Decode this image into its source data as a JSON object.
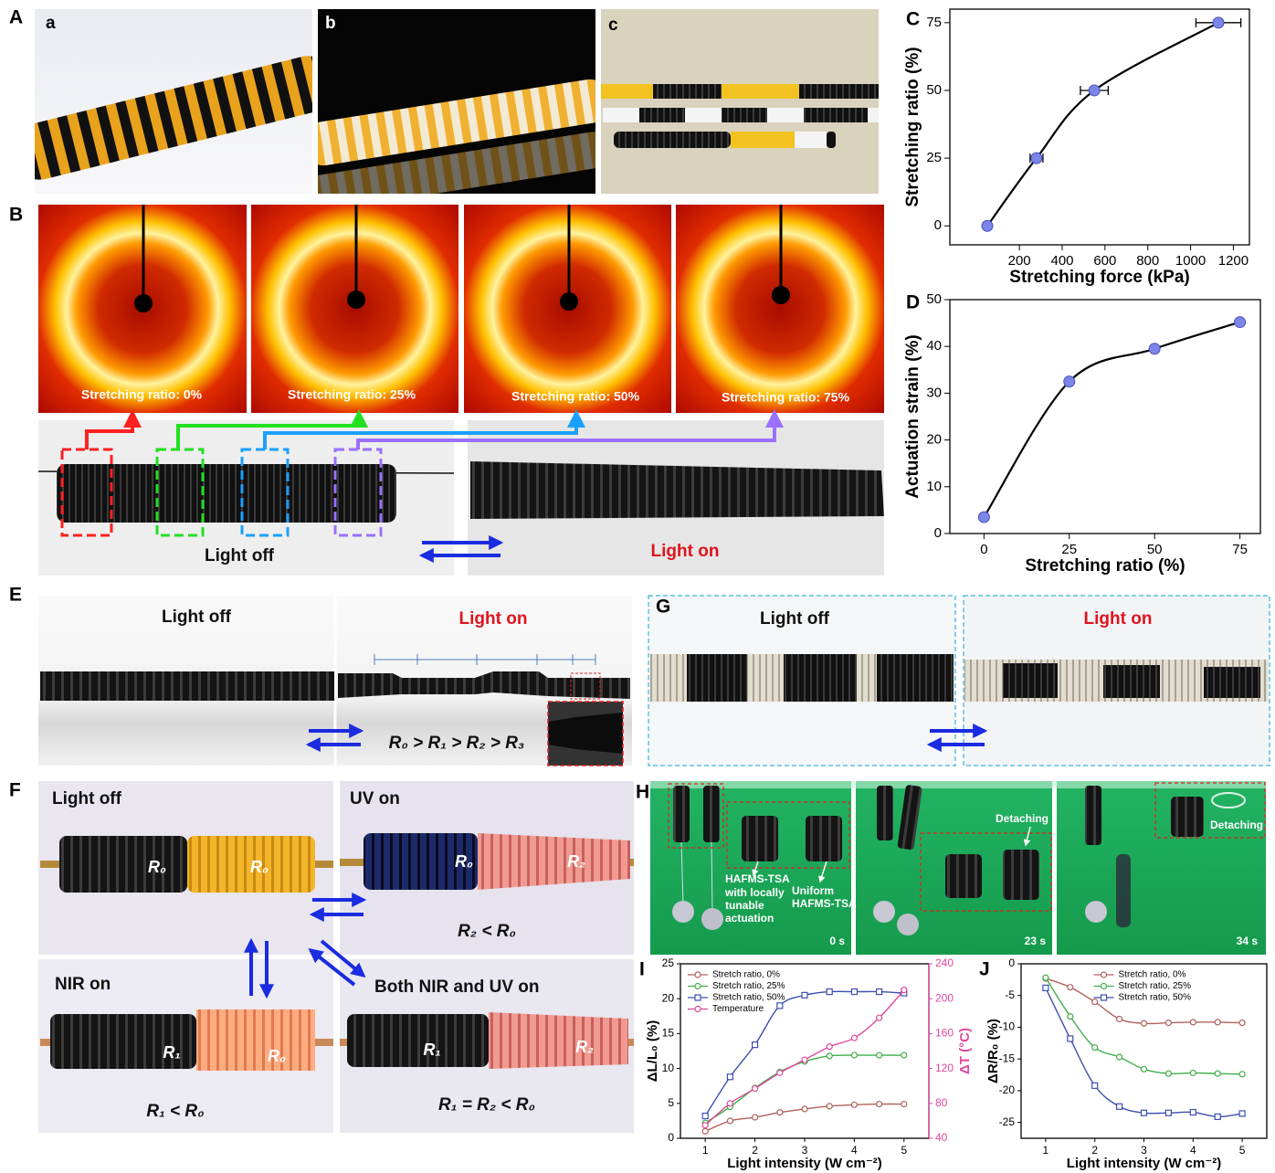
{
  "labels": [
    "A",
    "a",
    "b",
    "c",
    "B",
    "C",
    "D",
    "E",
    "F",
    "G",
    "H",
    "I",
    "J"
  ],
  "panel_B": {
    "captions": [
      "Stretching ratio: 0%",
      "Stretching ratio: 25%",
      "Stretching ratio: 50%",
      "Stretching ratio: 75%"
    ],
    "light_off": "Light off",
    "light_on": "Light on"
  },
  "panel_E": {
    "light_off": "Light off",
    "light_on": "Light on",
    "relation": "R₀ > R₁ > R₂ > R₃"
  },
  "panel_F": {
    "titles": [
      "Light off",
      "UV on",
      "NIR on",
      "Both NIR and UV on"
    ],
    "radii": [
      "R₀",
      "R₀",
      "R₀",
      "R₂",
      "R₁",
      "R₀",
      "R₁",
      "R₂"
    ],
    "relations": [
      "R₂ < R₀",
      "R₁ < R₀",
      "R₁ = R₂ < R₀"
    ]
  },
  "panel_G": {
    "light_off": "Light off",
    "light_on": "Light on"
  },
  "panel_H": {
    "annotation_local": [
      "HAFMS-TSA",
      "with locally",
      "tunable",
      "actuation"
    ],
    "annotation_uniform": [
      "Uniform",
      "HAFMS-TSA"
    ],
    "detaching": [
      "Detaching",
      "Detaching"
    ],
    "times": [
      "0 s",
      "23 s",
      "34 s"
    ]
  },
  "chart_data": [
    {
      "type": "line",
      "xlabel": "Stretching force (kPa)",
      "ylabel": "Stretching ratio (%)",
      "xlim": [
        -125,
        1275
      ],
      "ylim": [
        -7,
        80
      ],
      "xticks": [
        200,
        400,
        600,
        800,
        1000,
        1200
      ],
      "yticks": [
        0,
        25,
        50,
        75
      ],
      "x": [
        50,
        280,
        550,
        1130
      ],
      "values": [
        0,
        25,
        50,
        75
      ],
      "x_errors": [
        0,
        30,
        65,
        105
      ],
      "color": "#7b86e8",
      "line_color": "#000000"
    },
    {
      "type": "line",
      "xlabel": "Stretching ratio (%)",
      "ylabel": "Actuation strain (%)",
      "xlim": [
        -10,
        81
      ],
      "ylim": [
        0,
        50
      ],
      "xticks": [
        0,
        25,
        50,
        75
      ],
      "yticks": [
        0,
        10,
        20,
        30,
        40,
        50
      ],
      "x": [
        0,
        25,
        50,
        75
      ],
      "values": [
        3.5,
        32.5,
        39.5,
        45.2
      ],
      "color": "#7b86e8",
      "line_color": "#000000"
    },
    {
      "type": "line",
      "xlabel": "Light intensity (W cm⁻²)",
      "ylabel": "ΔL/L₀ (%)",
      "y2label": "ΔT (°C)",
      "xlim": [
        0.5,
        5.5
      ],
      "ylim": [
        0,
        25
      ],
      "y2lim": [
        40,
        240
      ],
      "xticks": [
        1,
        2,
        3,
        4,
        5
      ],
      "yticks": [
        0,
        5,
        10,
        15,
        20,
        25
      ],
      "y2ticks": [
        40,
        80,
        120,
        160,
        200,
        240
      ],
      "legend": "upper left",
      "x": [
        1,
        1.5,
        2,
        2.5,
        3,
        3.5,
        4,
        4.5,
        5
      ],
      "series": [
        {
          "name": "Stretch ratio, 0%",
          "color": "#b0615a",
          "marker": "circle",
          "values": [
            1,
            2.5,
            3,
            3.7,
            4.2,
            4.6,
            4.8,
            4.9,
            4.9
          ]
        },
        {
          "name": "Stretch ratio, 25%",
          "color": "#3fae49",
          "marker": "circle",
          "values": [
            2.2,
            4.5,
            7.2,
            9.5,
            11,
            11.8,
            11.9,
            11.9,
            11.9
          ]
        },
        {
          "name": "Stretch ratio, 50%",
          "color": "#3b4fb0",
          "marker": "square",
          "values": [
            3.2,
            8.8,
            13.4,
            19,
            20.5,
            21,
            21,
            21,
            20.8
          ]
        },
        {
          "name": "Temperature",
          "color": "#e0479e",
          "marker": "circle",
          "axis": "y2",
          "values": [
            55,
            80,
            97,
            115,
            130,
            145,
            155,
            178,
            210
          ]
        }
      ]
    },
    {
      "type": "line",
      "xlabel": "Light intensity (W cm⁻²)",
      "ylabel": "ΔR/R₀ (%)",
      "xlim": [
        0.5,
        5.5
      ],
      "ylim": [
        -27.5,
        0
      ],
      "xticks": [
        1,
        2,
        3,
        4,
        5
      ],
      "yticks": [
        0,
        -5,
        -10,
        -15,
        -20,
        -25
      ],
      "legend": "upper center",
      "x": [
        1,
        1.5,
        2,
        2.5,
        3,
        3.5,
        4,
        4.5,
        5
      ],
      "series": [
        {
          "name": "Stretch ratio, 0%",
          "color": "#b0615a",
          "marker": "circle",
          "values": [
            -2.3,
            -3.7,
            -6,
            -8.7,
            -9.4,
            -9.3,
            -9.2,
            -9.2,
            -9.3
          ]
        },
        {
          "name": "Stretch ratio, 25%",
          "color": "#3fae49",
          "marker": "circle",
          "values": [
            -2.2,
            -8.3,
            -13.2,
            -14.7,
            -16.6,
            -17.3,
            -17.2,
            -17.3,
            -17.4
          ]
        },
        {
          "name": "Stretch ratio, 50%",
          "color": "#3b4fb0",
          "marker": "square",
          "values": [
            -3.8,
            -11.8,
            -19.2,
            -22.5,
            -23.5,
            -23.5,
            -23.4,
            -24.1,
            -23.6
          ]
        }
      ]
    }
  ]
}
